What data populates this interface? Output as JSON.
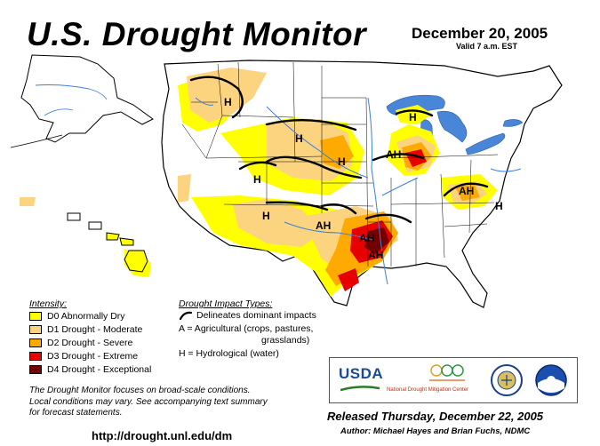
{
  "header": {
    "title": "U.S. Drought Monitor",
    "date": "December 20, 2005",
    "valid": "Valid 7 a.m. EST"
  },
  "map": {
    "impact_labels": [
      "H",
      "H",
      "H",
      "H",
      "AH",
      "H",
      "AH",
      "H",
      "AH",
      "AH",
      "AH",
      "H"
    ]
  },
  "legend": {
    "title": "Intensity:",
    "items": [
      {
        "code": "D0",
        "label": "D0 Abnormally Dry",
        "color": "#ffff00"
      },
      {
        "code": "D1",
        "label": "D1 Drought - Moderate",
        "color": "#fcd37f"
      },
      {
        "code": "D2",
        "label": "D2 Drought - Severe",
        "color": "#ffaa00"
      },
      {
        "code": "D3",
        "label": "D3 Drought - Extreme",
        "color": "#e60000"
      },
      {
        "code": "D4",
        "label": "D4 Drought - Exceptional",
        "color": "#730000"
      }
    ]
  },
  "impacts": {
    "title": "Drought Impact Types:",
    "line1": "Delineates dominant impacts",
    "line2": "A = Agricultural (crops, pastures,",
    "line3": "grasslands)",
    "line4": "H = Hydrological (water)"
  },
  "note": {
    "line1": "The Drought Monitor focuses on broad-scale conditions.",
    "line2": "Local conditions may vary.  See accompanying text summary",
    "line3": "for forecast statements."
  },
  "url": "http://drought.unl.edu/dm",
  "logos": {
    "usda": "USDA",
    "ndmc": "National Drought Mitigation Center"
  },
  "release": {
    "released": "Released Thursday, December 22, 2005",
    "authors": "Author: Michael Hayes and Brian Fuchs, NDMC"
  },
  "colors": {
    "water": "#3d7fe0",
    "lake": "#4a86d8",
    "border": "#000000"
  }
}
